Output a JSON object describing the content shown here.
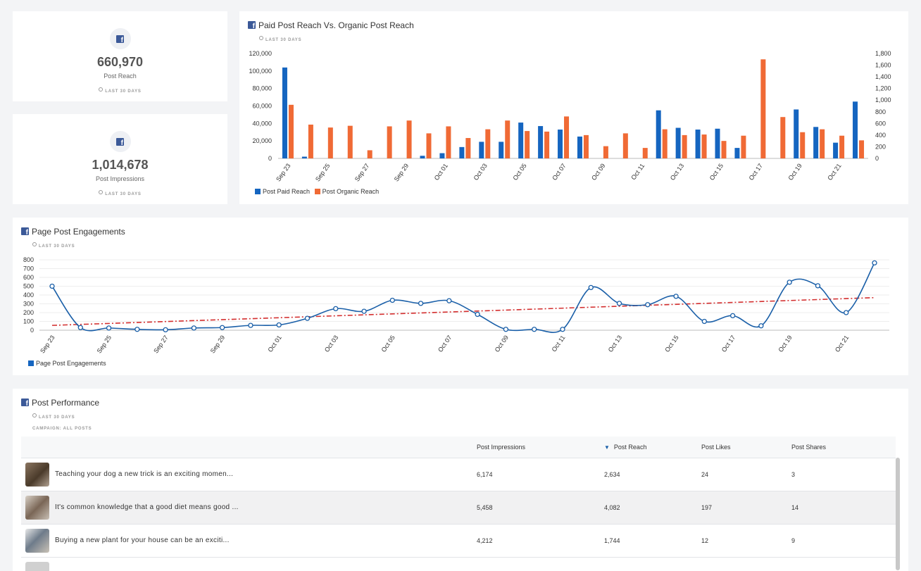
{
  "kpis": [
    {
      "value": "660,970",
      "label": "Post Reach",
      "period": "LAST 30 DAYS"
    },
    {
      "value": "1,014,678",
      "label": "Post Impressions",
      "period": "LAST 30 DAYS"
    }
  ],
  "reach_chart": {
    "title": "Paid Post Reach Vs. Organic Post Reach",
    "period": "LAST 30 DAYS",
    "legend": [
      "Post Paid Reach",
      "Post Organic Reach"
    ],
    "colors": {
      "paid": "#1565c0",
      "organic": "#f06a35"
    }
  },
  "engagement_chart": {
    "title": "Page Post Engagements",
    "period": "LAST 30 DAYS",
    "legend": "Page Post Engagements",
    "colors": {
      "line": "#1a5fa8",
      "trend": "#d32f2f"
    }
  },
  "chart_data": [
    {
      "type": "bar",
      "title": "Paid Post Reach Vs. Organic Post Reach",
      "categories": [
        "Sep 23",
        "Sep 24",
        "Sep 25",
        "Sep 26",
        "Sep 27",
        "Sep 28",
        "Sep 29",
        "Sep 30",
        "Oct 01",
        "Oct 02",
        "Oct 03",
        "Oct 04",
        "Oct 05",
        "Oct 06",
        "Oct 07",
        "Oct 08",
        "Oct 09",
        "Oct 10",
        "Oct 11",
        "Oct 12",
        "Oct 13",
        "Oct 14",
        "Oct 15",
        "Oct 16",
        "Oct 17",
        "Oct 18",
        "Oct 19",
        "Oct 20",
        "Oct 21",
        "Oct 22"
      ],
      "tick_labels": [
        "Sep 23",
        "Sep 25",
        "Sep 27",
        "Sep 29",
        "Oct 01",
        "Oct 03",
        "Oct 05",
        "Oct 07",
        "Oct 09",
        "Oct 11",
        "Oct 13",
        "Oct 15",
        "Oct 17",
        "Oct 19",
        "Oct 21"
      ],
      "series": [
        {
          "name": "Post Paid Reach",
          "axis": "left",
          "values": [
            104000,
            2000,
            0,
            0,
            0,
            0,
            0,
            3000,
            6000,
            13000,
            19000,
            19000,
            41000,
            37000,
            33000,
            25000,
            0,
            0,
            0,
            55000,
            35000,
            33000,
            34000,
            12000,
            0,
            0,
            56000,
            36000,
            18000,
            65000
          ]
        },
        {
          "name": "Post Organic Reach",
          "axis": "right",
          "values": [
            920,
            580,
            530,
            560,
            140,
            550,
            650,
            430,
            550,
            350,
            500,
            650,
            470,
            460,
            720,
            400,
            210,
            430,
            180,
            500,
            400,
            410,
            300,
            390,
            1700,
            710,
            450,
            500,
            390,
            310
          ]
        }
      ],
      "y_left": {
        "min": 0,
        "max": 120000,
        "ticks": [
          "0",
          "20,000",
          "40,000",
          "60,000",
          "80,000",
          "100,000",
          "120,000"
        ]
      },
      "y_right": {
        "min": 0,
        "max": 1800,
        "ticks": [
          "0",
          "200",
          "400",
          "600",
          "800",
          "1,000",
          "1,200",
          "1,400",
          "1,600",
          "1,800"
        ]
      }
    },
    {
      "type": "line",
      "title": "Page Post Engagements",
      "categories": [
        "Sep 23",
        "Sep 24",
        "Sep 25",
        "Sep 26",
        "Sep 27",
        "Sep 28",
        "Sep 29",
        "Sep 30",
        "Oct 01",
        "Oct 02",
        "Oct 03",
        "Oct 04",
        "Oct 05",
        "Oct 06",
        "Oct 07",
        "Oct 08",
        "Oct 09",
        "Oct 10",
        "Oct 11",
        "Oct 12",
        "Oct 13",
        "Oct 14",
        "Oct 15",
        "Oct 16",
        "Oct 17",
        "Oct 18",
        "Oct 19",
        "Oct 20",
        "Oct 21",
        "Oct 22"
      ],
      "tick_labels": [
        "Sep 23",
        "Sep 25",
        "Sep 27",
        "Sep 29",
        "Oct 01",
        "Oct 03",
        "Oct 05",
        "Oct 07",
        "Oct 09",
        "Oct 11",
        "Oct 13",
        "Oct 15",
        "Oct 17",
        "Oct 19",
        "Oct 21"
      ],
      "series": [
        {
          "name": "Page Post Engagements",
          "values": [
            500,
            30,
            25,
            10,
            5,
            25,
            30,
            55,
            60,
            135,
            245,
            215,
            340,
            305,
            335,
            180,
            10,
            10,
            10,
            485,
            305,
            290,
            385,
            100,
            165,
            50,
            545,
            505,
            200,
            765
          ]
        }
      ],
      "trend": {
        "start": 55,
        "end": 370
      },
      "ylim": [
        0,
        800
      ],
      "y_ticks": [
        "0",
        "100",
        "200",
        "300",
        "400",
        "500",
        "600",
        "700",
        "800"
      ]
    }
  ],
  "performance": {
    "title": "Post Performance",
    "period": "LAST 30 DAYS",
    "campaign": "CAMPAIGN: ALL POSTS",
    "columns": [
      "Post Impressions",
      "Post Reach",
      "Post Likes",
      "Post Shares"
    ],
    "rows": [
      {
        "text": "Teaching your dog a new trick is an exciting momen...",
        "impressions": "6,174",
        "reach": "2,634",
        "likes": "24",
        "shares": "3"
      },
      {
        "text": "It's common knowledge that a good diet means good ...",
        "impressions": "5,458",
        "reach": "4,082",
        "likes": "197",
        "shares": "14"
      },
      {
        "text": "Buying a new plant for your house can be an exciti...",
        "impressions": "4,212",
        "reach": "1,744",
        "likes": "12",
        "shares": "9"
      }
    ]
  }
}
